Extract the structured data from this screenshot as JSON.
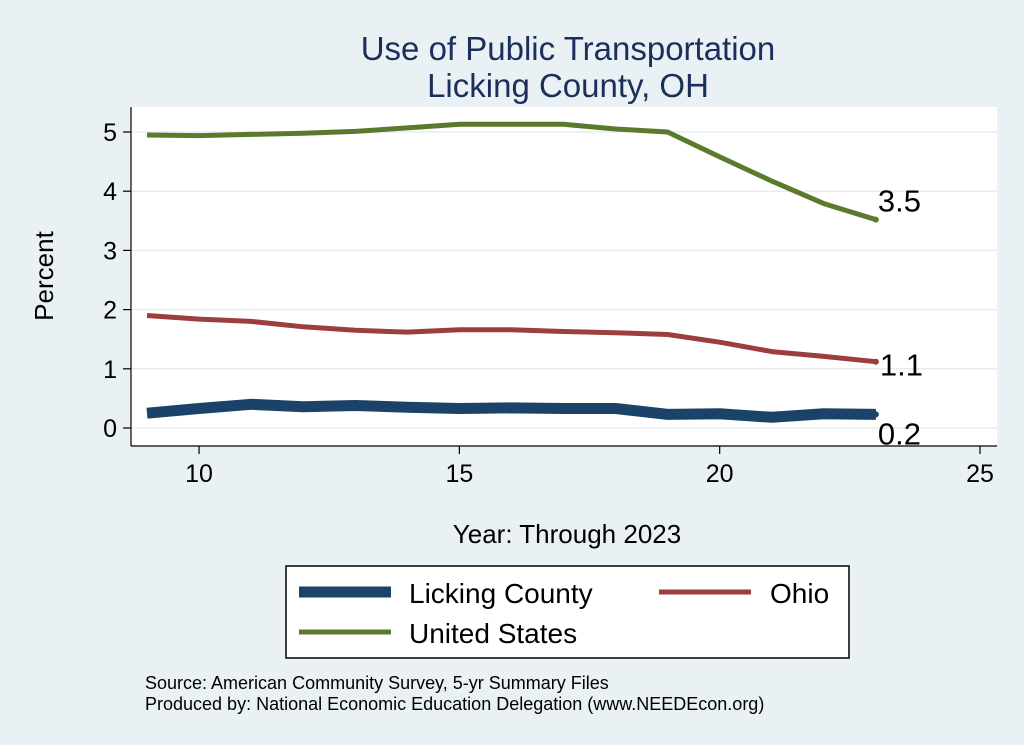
{
  "chart_data": {
    "type": "line",
    "title": [
      "Use of Public Transportation",
      "Licking County, OH"
    ],
    "xlabel": "Year: Through 2023",
    "ylabel": "Percent",
    "xlim": [
      9,
      25
    ],
    "ylim": [
      0,
      5
    ],
    "xticks": [
      10,
      15,
      20,
      25
    ],
    "yticks": [
      0,
      1,
      2,
      3,
      4,
      5
    ],
    "grid": true,
    "legend_placement": "bottom",
    "x": [
      9,
      10,
      11,
      12,
      13,
      14,
      15,
      16,
      17,
      18,
      19,
      20,
      21,
      22,
      23
    ],
    "series": [
      {
        "name": "Licking County",
        "color": "#1b4268",
        "values": [
          0.25,
          0.33,
          0.4,
          0.36,
          0.38,
          0.35,
          0.33,
          0.34,
          0.33,
          0.33,
          0.23,
          0.24,
          0.18,
          0.24,
          0.23
        ],
        "end_label": "0.2"
      },
      {
        "name": "Ohio",
        "color": "#9c3d3e",
        "values": [
          1.9,
          1.84,
          1.8,
          1.71,
          1.65,
          1.62,
          1.66,
          1.66,
          1.63,
          1.61,
          1.58,
          1.45,
          1.29,
          1.21,
          1.12
        ],
        "end_label": "1.1"
      },
      {
        "name": "United States",
        "color": "#5a7a2d",
        "values": [
          4.95,
          4.94,
          4.96,
          4.98,
          5.01,
          5.07,
          5.13,
          5.13,
          5.13,
          5.05,
          5.0,
          4.58,
          4.17,
          3.79,
          3.52
        ],
        "end_label": "3.5"
      }
    ]
  },
  "footer": {
    "source": "Source: American Community Survey, 5-yr Summary Files",
    "produced_by": "Produced by: National Economic Education Delegation (www.NEEDEcon.org)"
  }
}
